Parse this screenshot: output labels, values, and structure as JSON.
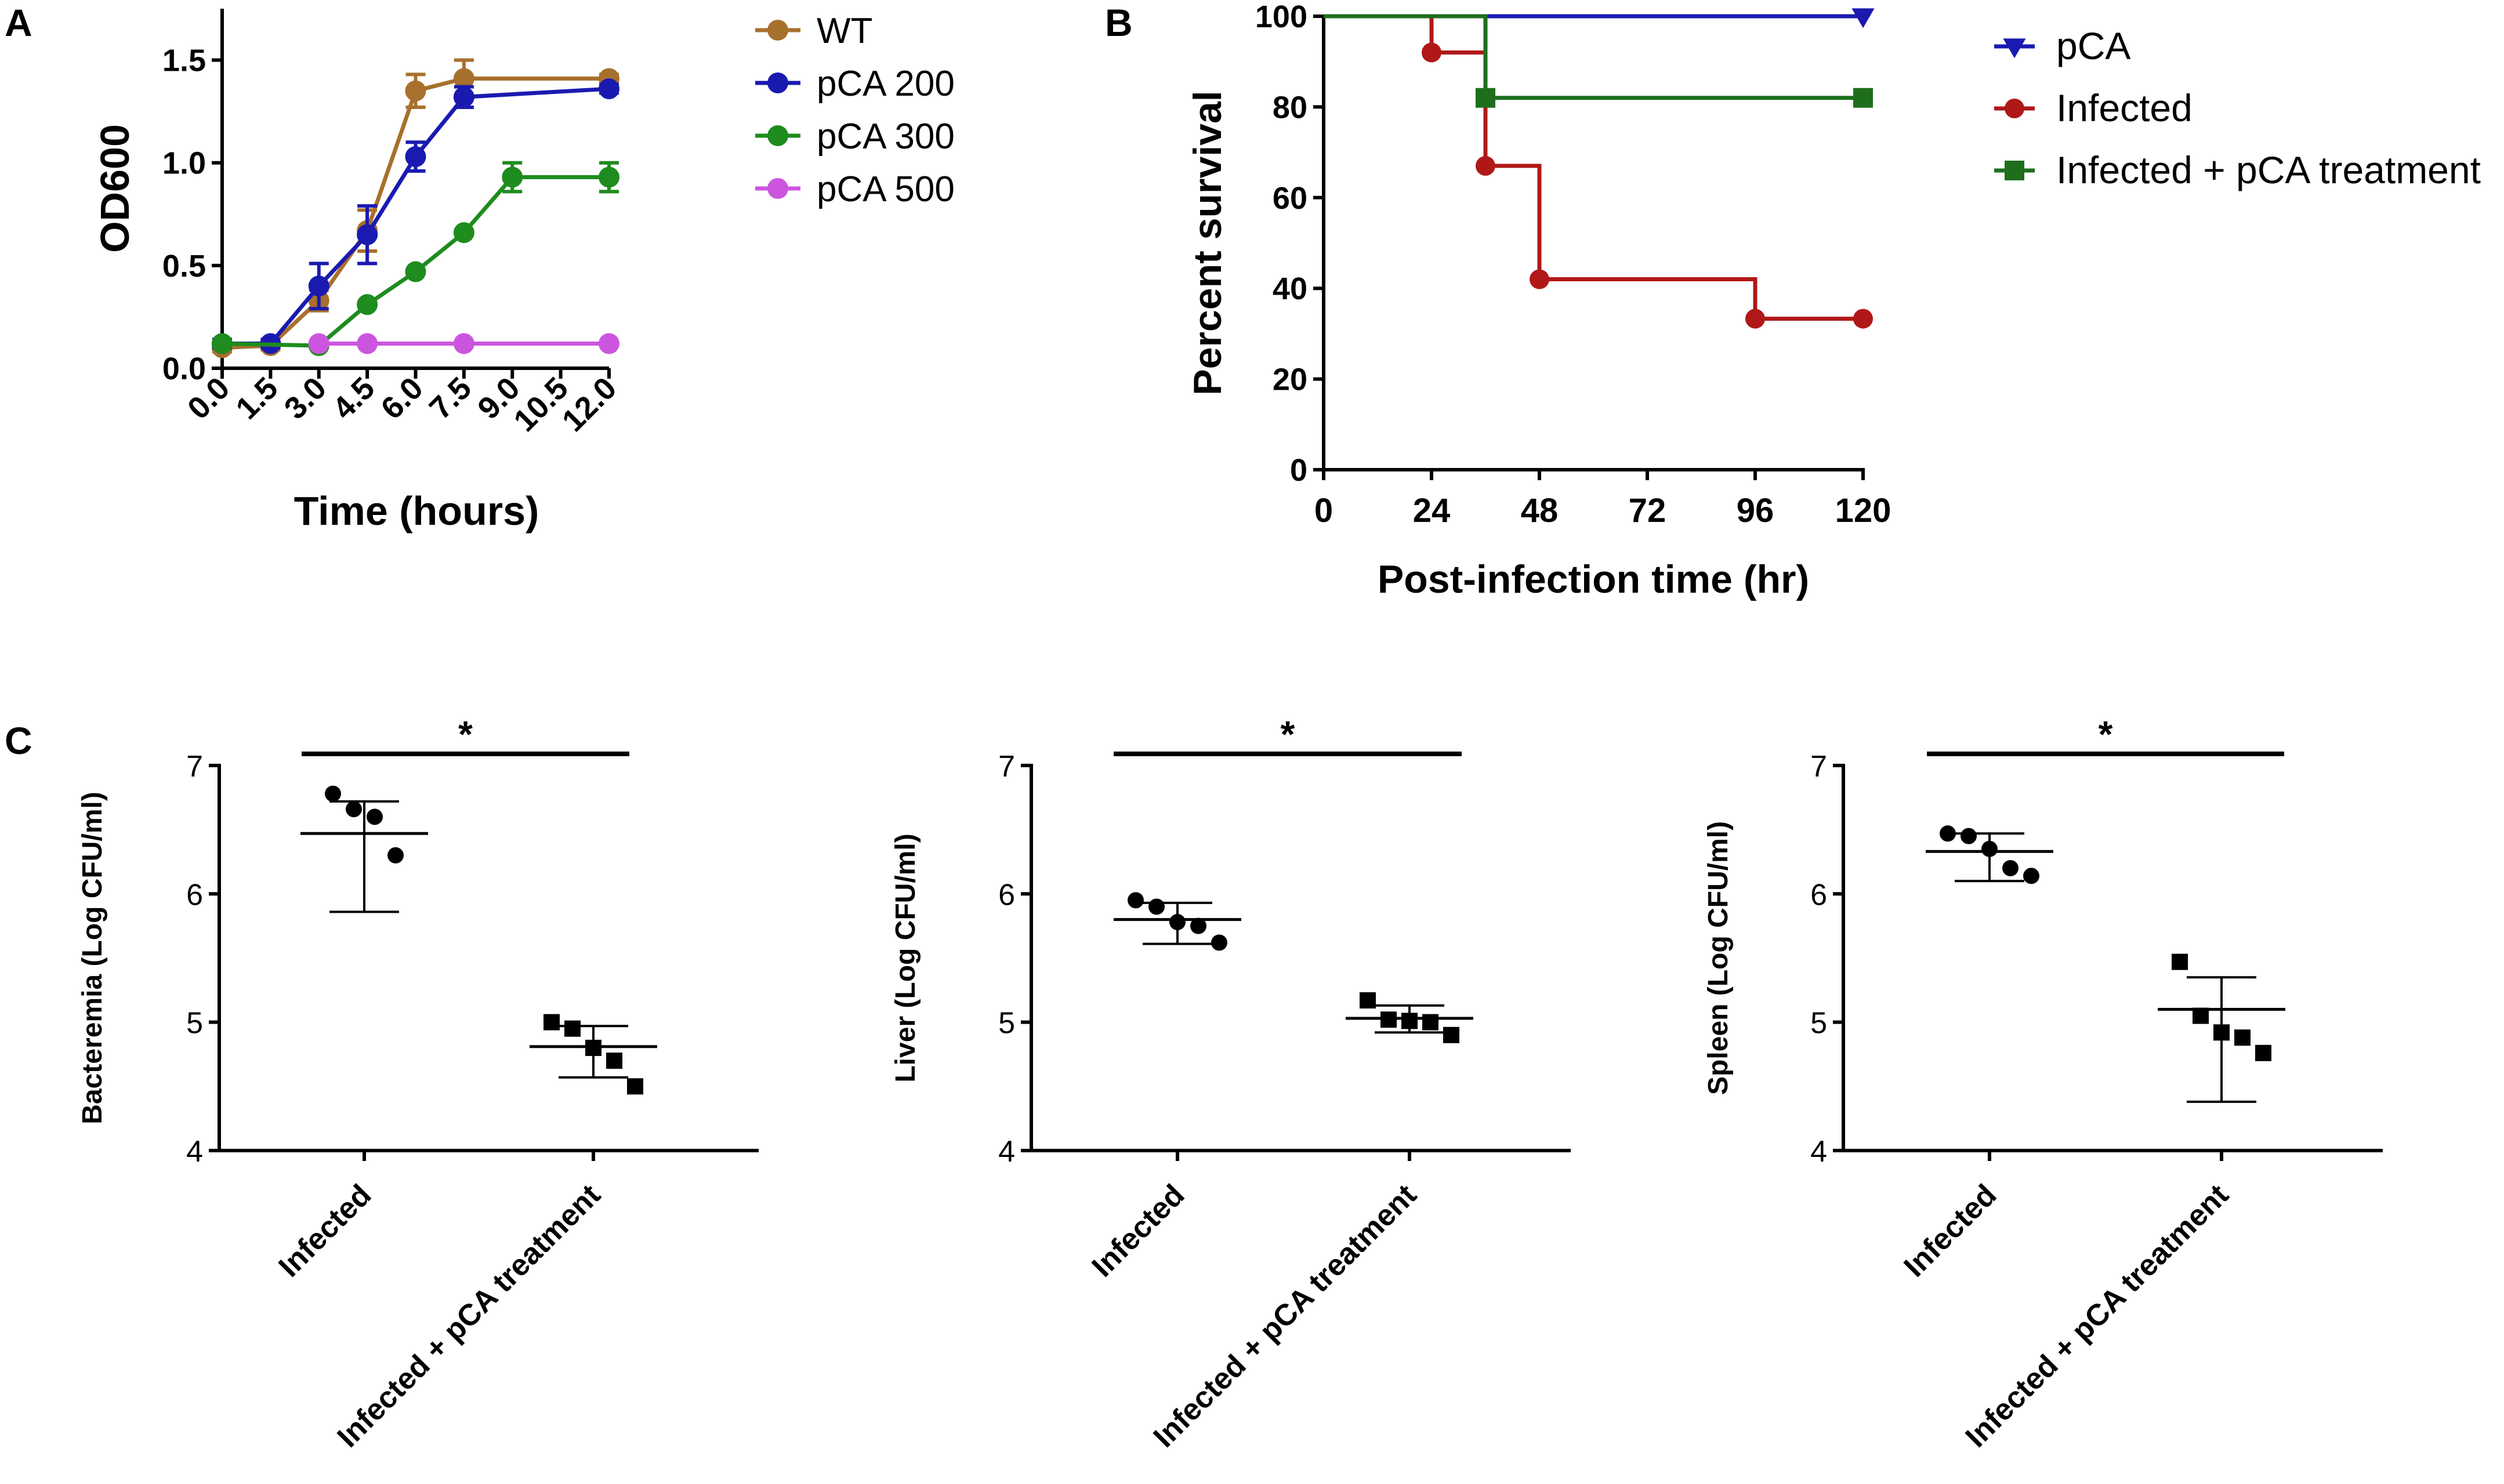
{
  "chart_data": [
    {
      "panel": "A",
      "type": "line",
      "xlabel": "Time (hours)",
      "ylabel": "OD600",
      "xlim": [
        0,
        12
      ],
      "ylim": [
        0,
        1.75
      ],
      "xticks": [
        "0.0",
        "1.5",
        "3.0",
        "4.5",
        "6.0",
        "7.5",
        "9.0",
        "10.5",
        "12.0"
      ],
      "yticks": [
        "0.0",
        "0.5",
        "1.0",
        "1.5"
      ],
      "legend": "right",
      "series": [
        {
          "name": "WT",
          "color": "#A8702D",
          "x": [
            0,
            1.5,
            3,
            4.5,
            6,
            7.5,
            12
          ],
          "y": [
            0.1,
            0.11,
            0.33,
            0.67,
            1.35,
            1.41,
            1.41
          ],
          "err": [
            0.02,
            0.02,
            0.05,
            0.1,
            0.08,
            0.09,
            0.02
          ]
        },
        {
          "name": "pCA 200",
          "color": "#1A1AB0",
          "x": [
            0,
            1.5,
            3,
            4.5,
            6,
            7.5,
            12
          ],
          "y": [
            0.12,
            0.12,
            0.4,
            0.65,
            1.03,
            1.32,
            1.36
          ],
          "err": [
            0.02,
            0.02,
            0.11,
            0.14,
            0.07,
            0.05,
            0.02
          ]
        },
        {
          "name": "pCA 300",
          "color": "#1E8C1E",
          "x": [
            0,
            3,
            4.5,
            6,
            7.5,
            9,
            12
          ],
          "y": [
            0.12,
            0.11,
            0.31,
            0.47,
            0.66,
            0.93,
            0.93
          ],
          "err": [
            0.01,
            0.01,
            0.01,
            0.01,
            0.01,
            0.07,
            0.07
          ]
        },
        {
          "name": "pCA 500",
          "color": "#CC55E0",
          "x": [
            3,
            4.5,
            7.5,
            12
          ],
          "y": [
            0.12,
            0.12,
            0.12,
            0.12
          ],
          "err": [
            0,
            0,
            0,
            0
          ]
        }
      ]
    },
    {
      "panel": "B",
      "type": "line",
      "xlabel": "Post-infection time (hr)",
      "ylabel": "Percent survival",
      "xlim": [
        0,
        120
      ],
      "ylim": [
        0,
        100
      ],
      "xticks": [
        "0",
        "24",
        "48",
        "72",
        "96",
        "120"
      ],
      "yticks": [
        "0",
        "20",
        "40",
        "60",
        "80",
        "100"
      ],
      "legend": "right",
      "series": [
        {
          "name": "pCA",
          "color": "#1A1AB0",
          "marker": "triangle-down",
          "steps": [
            [
              0,
              100
            ],
            [
              120,
              100
            ]
          ],
          "markers": [
            [
              120,
              100
            ]
          ]
        },
        {
          "name": "Infected",
          "color": "#B01818",
          "marker": "circle",
          "steps": [
            [
              0,
              100
            ],
            [
              24,
              92
            ],
            [
              36,
              67
            ],
            [
              48,
              42
            ],
            [
              96,
              33.3
            ],
            [
              120,
              33.3
            ]
          ],
          "markers": [
            [
              24,
              92
            ],
            [
              36,
              67
            ],
            [
              48,
              42
            ],
            [
              96,
              33.3
            ],
            [
              120,
              33.3
            ]
          ]
        },
        {
          "name": "Infected + pCA treatment",
          "color": "#1E6E1E",
          "marker": "square",
          "steps": [
            [
              0,
              100
            ],
            [
              36,
              82
            ],
            [
              120,
              82
            ]
          ],
          "markers": [
            [
              36,
              82
            ],
            [
              120,
              82
            ]
          ]
        }
      ]
    },
    {
      "panel": "C",
      "type": "scatter",
      "title": "",
      "ylabel": "Bacteremia (Log CFU/ml)",
      "categories": [
        "Infected",
        "Infected + pCA treatment"
      ],
      "ylim": [
        4,
        7
      ],
      "yticks": [
        "4",
        "5",
        "6",
        "7"
      ],
      "significance": "*",
      "groups": [
        {
          "marker": "circle",
          "values": [
            6.78,
            6.66,
            6.6,
            6.3
          ],
          "mean": 6.47,
          "upper": 6.72,
          "lower": 5.86
        },
        {
          "marker": "square",
          "values": [
            5.0,
            4.95,
            4.8,
            4.7,
            4.5
          ],
          "mean": 4.81,
          "upper": 4.97,
          "lower": 4.57
        }
      ]
    },
    {
      "panel": "C",
      "type": "scatter",
      "title": "",
      "ylabel": "Liver (Log CFU/ml)",
      "categories": [
        "Infected",
        "Infected + pCA treatment"
      ],
      "ylim": [
        4,
        7
      ],
      "yticks": [
        "4",
        "5",
        "6",
        "7"
      ],
      "significance": "*",
      "groups": [
        {
          "marker": "circle",
          "values": [
            5.95,
            5.9,
            5.78,
            5.75,
            5.62
          ],
          "mean": 5.8,
          "upper": 5.93,
          "lower": 5.61
        },
        {
          "marker": "square",
          "values": [
            5.17,
            5.02,
            5.01,
            5.0,
            4.9
          ],
          "mean": 5.03,
          "upper": 5.13,
          "lower": 4.92
        }
      ]
    },
    {
      "panel": "C",
      "type": "scatter",
      "title": "",
      "ylabel": "Spleen (Log CFU/ml)",
      "categories": [
        "Infected",
        "Infected + pCA treatment"
      ],
      "ylim": [
        4,
        7
      ],
      "yticks": [
        "4",
        "5",
        "6",
        "7"
      ],
      "significance": "*",
      "groups": [
        {
          "marker": "circle",
          "values": [
            6.47,
            6.45,
            6.35,
            6.2,
            6.14
          ],
          "mean": 6.33,
          "upper": 6.47,
          "lower": 6.1
        },
        {
          "marker": "square",
          "values": [
            5.47,
            5.05,
            4.92,
            4.88,
            4.76
          ],
          "mean": 5.1,
          "upper": 5.35,
          "lower": 4.38
        }
      ]
    }
  ],
  "panel_labels": [
    "A",
    "B",
    "C"
  ]
}
